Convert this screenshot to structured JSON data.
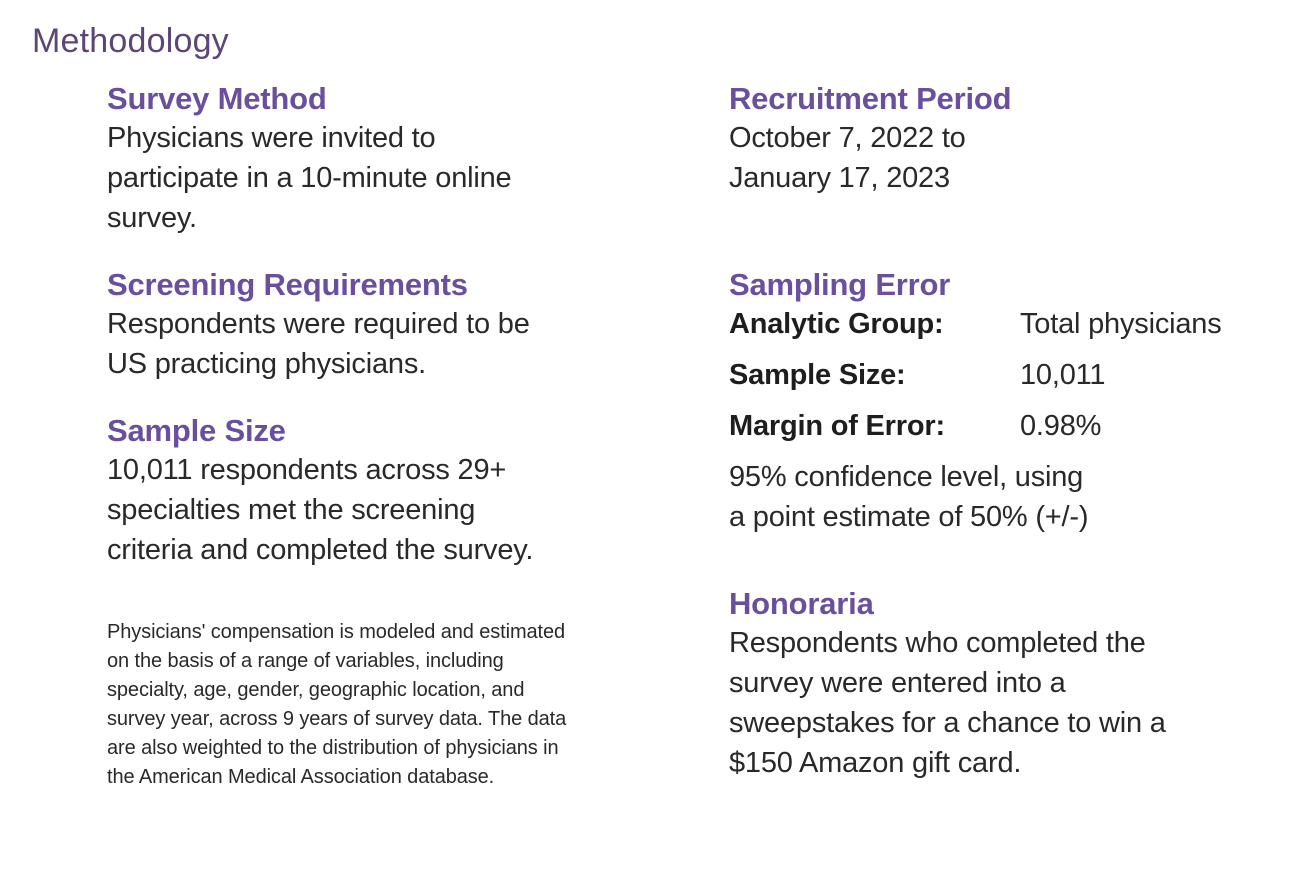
{
  "page_title": "Methodology",
  "colors": {
    "title_purple": "#5c4676",
    "heading_purple": "#6a4f9e",
    "body_text": "#29292c",
    "background": "#ffffff"
  },
  "left": {
    "sections": [
      {
        "heading": "Survey Method",
        "lines": [
          "Physicians were invited to",
          "participate in a 10-minute online",
          "survey."
        ]
      },
      {
        "heading": "Screening Requirements",
        "lines": [
          "Respondents were required to be",
          "US practicing physicians."
        ]
      },
      {
        "heading": "Sample Size",
        "lines": [
          "10,011 respondents across 29+",
          "specialties met the screening",
          "criteria and completed the survey."
        ]
      }
    ],
    "footnote_lines": [
      "Physicians' compensation is modeled and estimated",
      "on the basis of a range of variables, including",
      "specialty, age, gender, geographic location, and",
      "survey year, across 9 years of survey data. The data",
      "are also weighted to the distribution of physicians in",
      "the American Medical Association database."
    ]
  },
  "right": {
    "recruitment": {
      "heading": "Recruitment Period",
      "lines": [
        "October 7, 2022 to",
        "January 17, 2023"
      ]
    },
    "sampling_error": {
      "heading": "Sampling Error",
      "rows": [
        {
          "label": "Analytic Group:",
          "value": "Total physicians"
        },
        {
          "label": "Sample Size:",
          "value": "10,011"
        },
        {
          "label": "Margin of Error:",
          "value": "0.98%"
        }
      ],
      "note_lines": [
        "95% confidence level, using",
        "a point estimate of 50% (+/-)"
      ]
    },
    "honoraria": {
      "heading": "Honoraria",
      "lines": [
        "Respondents who completed the",
        "survey were entered into a",
        "sweepstakes for a chance to win a",
        "$150 Amazon gift card."
      ]
    }
  }
}
